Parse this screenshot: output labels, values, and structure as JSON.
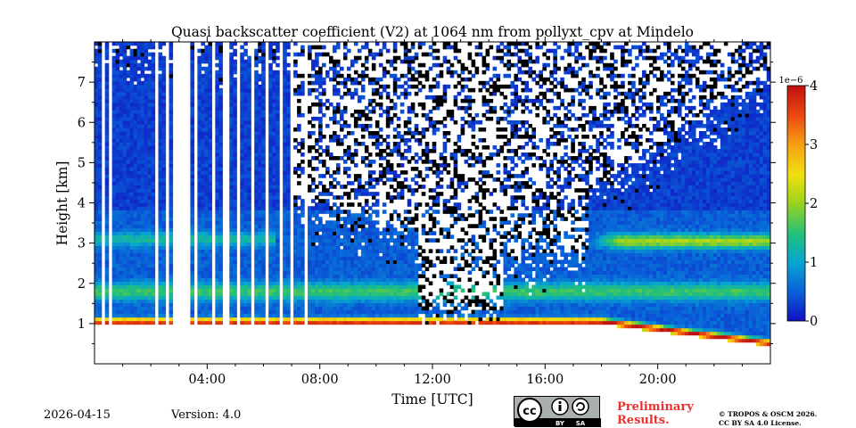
{
  "chart_data": {
    "type": "heatmap",
    "title": "Quasi backscatter coefficient (V2) at 1064 nm from pollyxt_cpv at Mindelo",
    "xlabel": "Time [UTC]",
    "ylabel": "Height [km]",
    "x_unit": "hours UTC",
    "xlim": [
      0,
      24
    ],
    "ylim": [
      0,
      8
    ],
    "x_ticks": [
      4,
      8,
      12,
      16,
      20
    ],
    "x_tick_labels": [
      "04:00",
      "08:00",
      "12:00",
      "16:00",
      "20:00"
    ],
    "y_ticks": [
      1,
      2,
      3,
      4,
      5,
      6,
      7
    ],
    "y_tick_labels": [
      "1",
      "2",
      "3",
      "4",
      "5",
      "6",
      "7"
    ],
    "colorbar": {
      "min": 0,
      "max": 4,
      "scale_label": "1e−6",
      "ticks": [
        0,
        1,
        2,
        3,
        4
      ],
      "tick_labels": [
        "0",
        "1",
        "2",
        "3",
        "4"
      ],
      "colormap": [
        "#1010c0",
        "#0a5ed8",
        "#06a6d0",
        "#22c07a",
        "#9ad31c",
        "#f0e010",
        "#f5a012",
        "#ec4a10",
        "#c01010"
      ]
    },
    "features": [
      {
        "name": "aerosol layer base",
        "height_km": 1.0,
        "start_h": 0,
        "end_h": 24,
        "value": 3.5
      },
      {
        "name": "lower aerosol layer",
        "height_km": 1.8,
        "start_h": 0,
        "end_h": 24,
        "value": 1.4
      },
      {
        "name": "elevated aerosol layer",
        "height_km": 3.05,
        "start_h": 17.5,
        "end_h": 24,
        "value": 1.9
      },
      {
        "name": "elevated aerosol layer (early)",
        "height_km": 3.1,
        "start_h": 0,
        "end_h": 6.5,
        "value": 1.1
      }
    ]
  },
  "footer": {
    "date": "2026-04-15",
    "version": "Version: 4.0",
    "preliminary_line1": "Preliminary",
    "preliminary_line2": "Results.",
    "license_line1": "© TROPOS & OSCM 2026.",
    "license_line2": "CC BY SA 4.0 License.",
    "cc_by": "BY",
    "cc_sa": "SA"
  }
}
